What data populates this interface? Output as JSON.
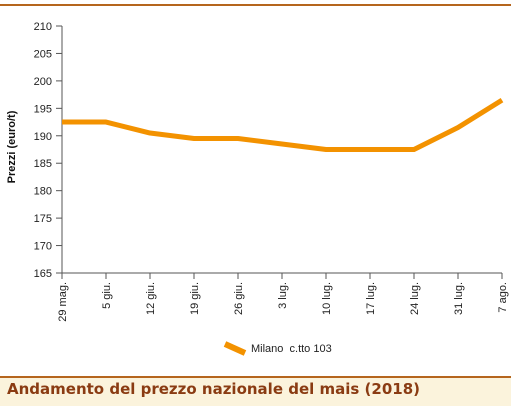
{
  "chart_data": {
    "type": "line",
    "title": "Andamento del prezzo nazionale del mais (2018)",
    "xlabel": "",
    "ylabel": "Prezzi (euro/t)",
    "ylim": [
      165,
      210
    ],
    "yticks": [
      165,
      170,
      175,
      180,
      185,
      190,
      195,
      200,
      205,
      210
    ],
    "categories": [
      "29 mag.",
      "5 giu.",
      "12 giu.",
      "19 giu.",
      "26 giu.",
      "3 lug.",
      "10 lug.",
      "17 lug.",
      "24 lug.",
      "31 lug.",
      "7 ago."
    ],
    "series": [
      {
        "name": "Milano  c.tto 103",
        "color": "#f39200",
        "values": [
          192.5,
          192.5,
          190.5,
          189.5,
          189.5,
          188.5,
          187.5,
          187.5,
          187.5,
          191.5,
          196.5
        ]
      }
    ],
    "grid": false,
    "legend": "bottom-center"
  },
  "caption": {
    "text": "Andamento del prezzo nazionale del mais (2018)"
  },
  "colors": {
    "accent_rule": "#b5651d",
    "caption_bg": "#fbf3dc",
    "caption_text": "#8a3b12",
    "axis": "#555555"
  }
}
